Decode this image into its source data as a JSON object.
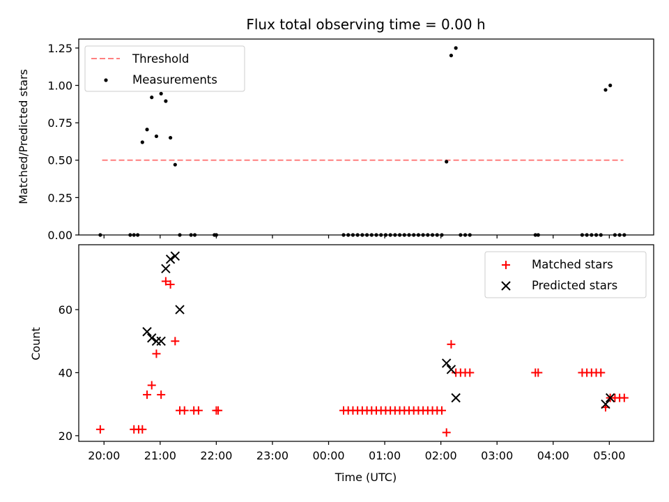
{
  "chart_data": [
    {
      "type": "scatter",
      "panel": "top",
      "title": "Flux total observing time = 0.00 h",
      "ylabel": "Matched/Predicted stars",
      "ylim": [
        0,
        1.31
      ],
      "yticks": [
        0.0,
        0.25,
        0.5,
        0.75,
        1.0,
        1.25
      ],
      "ytick_labels": [
        "0.00",
        "0.25",
        "0.50",
        "0.75",
        "1.00",
        "1.25"
      ],
      "xlim_hours": [
        19.55,
        29.79
      ],
      "legend_position": "upper-left",
      "colors": {
        "threshold": "#ff7f7f",
        "measurements": "#000000"
      },
      "series": [
        {
          "name": "Threshold",
          "kind": "dashed-line",
          "x": [
            "19:58",
            "05:15"
          ],
          "y": [
            0.5,
            0.5
          ]
        },
        {
          "name": "Measurements",
          "kind": "points",
          "points": [
            [
              "19:56",
              0.0
            ],
            [
              "20:28",
              0.0
            ],
            [
              "20:32",
              0.0
            ],
            [
              "20:36",
              0.0
            ],
            [
              "20:41",
              0.62
            ],
            [
              "20:46",
              0.705
            ],
            [
              "20:51",
              0.92
            ],
            [
              "20:56",
              0.66
            ],
            [
              "21:01",
              0.945
            ],
            [
              "21:06",
              0.895
            ],
            [
              "21:11",
              0.65
            ],
            [
              "21:16",
              0.47
            ],
            [
              "21:21",
              0.0
            ],
            [
              "21:33",
              0.0
            ],
            [
              "21:37",
              0.0
            ],
            [
              "21:58",
              0.0
            ],
            [
              "22:00",
              0.0
            ],
            [
              "00:16",
              0.0
            ],
            [
              "00:21",
              0.0
            ],
            [
              "00:26",
              0.0
            ],
            [
              "00:31",
              0.0
            ],
            [
              "00:36",
              0.0
            ],
            [
              "00:41",
              0.0
            ],
            [
              "00:46",
              0.0
            ],
            [
              "00:51",
              0.0
            ],
            [
              "00:56",
              0.0
            ],
            [
              "01:01",
              0.0
            ],
            [
              "01:06",
              0.0
            ],
            [
              "01:11",
              0.0
            ],
            [
              "01:16",
              0.0
            ],
            [
              "01:21",
              0.0
            ],
            [
              "01:26",
              0.0
            ],
            [
              "01:31",
              0.0
            ],
            [
              "01:36",
              0.0
            ],
            [
              "01:41",
              0.0
            ],
            [
              "01:46",
              0.0
            ],
            [
              "01:51",
              0.0
            ],
            [
              "01:56",
              0.0
            ],
            [
              "02:01",
              0.0
            ],
            [
              "02:06",
              0.49
            ],
            [
              "02:11",
              1.2
            ],
            [
              "02:16",
              1.25
            ],
            [
              "02:21",
              0.0
            ],
            [
              "02:26",
              0.0
            ],
            [
              "02:31",
              0.0
            ],
            [
              "03:41",
              0.0
            ],
            [
              "03:44",
              0.0
            ],
            [
              "04:31",
              0.0
            ],
            [
              "04:36",
              0.0
            ],
            [
              "04:41",
              0.0
            ],
            [
              "04:46",
              0.0
            ],
            [
              "04:51",
              0.0
            ],
            [
              "04:56",
              0.97
            ],
            [
              "05:01",
              1.0
            ],
            [
              "05:06",
              0.0
            ],
            [
              "05:11",
              0.0
            ],
            [
              "05:16",
              0.0
            ]
          ]
        }
      ]
    },
    {
      "type": "scatter",
      "panel": "bottom",
      "xlabel": "Time (UTC)",
      "ylabel": "Count",
      "ylim": [
        18.2,
        80.6
      ],
      "yticks": [
        20,
        40,
        60
      ],
      "ytick_labels": [
        "20",
        "40",
        "60"
      ],
      "xlim_hours": [
        19.55,
        29.79
      ],
      "xticks": [
        "20:00",
        "21:00",
        "22:00",
        "23:00",
        "00:00",
        "01:00",
        "02:00",
        "03:00",
        "04:00",
        "05:00"
      ],
      "legend_position": "upper-right",
      "colors": {
        "matched": "#ff0000",
        "predicted": "#000000"
      },
      "series": [
        {
          "name": "Matched stars",
          "marker": "plus",
          "points": [
            [
              "19:56",
              22
            ],
            [
              "20:32",
              22
            ],
            [
              "20:37",
              22
            ],
            [
              "20:41",
              22
            ],
            [
              "20:46",
              33
            ],
            [
              "20:51",
              36
            ],
            [
              "20:56",
              46
            ],
            [
              "21:01",
              33
            ],
            [
              "21:06",
              69
            ],
            [
              "21:11",
              68
            ],
            [
              "21:16",
              50
            ],
            [
              "21:21",
              28
            ],
            [
              "21:26",
              28
            ],
            [
              "21:36",
              28
            ],
            [
              "21:41",
              28
            ],
            [
              "22:00",
              28
            ],
            [
              "22:02",
              28
            ],
            [
              "00:16",
              28
            ],
            [
              "00:21",
              28
            ],
            [
              "00:26",
              28
            ],
            [
              "00:31",
              28
            ],
            [
              "00:36",
              28
            ],
            [
              "00:41",
              28
            ],
            [
              "00:46",
              28
            ],
            [
              "00:51",
              28
            ],
            [
              "00:56",
              28
            ],
            [
              "01:01",
              28
            ],
            [
              "01:06",
              28
            ],
            [
              "01:11",
              28
            ],
            [
              "01:16",
              28
            ],
            [
              "01:21",
              28
            ],
            [
              "01:26",
              28
            ],
            [
              "01:31",
              28
            ],
            [
              "01:36",
              28
            ],
            [
              "01:41",
              28
            ],
            [
              "01:46",
              28
            ],
            [
              "01:51",
              28
            ],
            [
              "01:56",
              28
            ],
            [
              "02:01",
              28
            ],
            [
              "02:06",
              21
            ],
            [
              "02:11",
              49
            ],
            [
              "02:16",
              40
            ],
            [
              "02:21",
              40
            ],
            [
              "02:26",
              40
            ],
            [
              "02:31",
              40
            ],
            [
              "03:41",
              40
            ],
            [
              "03:44",
              40
            ],
            [
              "04:31",
              40
            ],
            [
              "04:36",
              40
            ],
            [
              "04:41",
              40
            ],
            [
              "04:46",
              40
            ],
            [
              "04:51",
              40
            ],
            [
              "04:56",
              29
            ],
            [
              "05:01",
              32
            ],
            [
              "05:06",
              32
            ],
            [
              "05:11",
              32
            ],
            [
              "05:16",
              32
            ]
          ]
        },
        {
          "name": "Predicted stars",
          "marker": "x",
          "points": [
            [
              "20:46",
              53
            ],
            [
              "20:51",
              51
            ],
            [
              "20:56",
              50
            ],
            [
              "21:01",
              50
            ],
            [
              "21:06",
              73
            ],
            [
              "21:11",
              76
            ],
            [
              "21:16",
              77
            ],
            [
              "21:21",
              60
            ],
            [
              "02:06",
              43
            ],
            [
              "02:11",
              41
            ],
            [
              "02:16",
              32
            ],
            [
              "04:56",
              30
            ],
            [
              "05:01",
              32
            ]
          ]
        }
      ]
    }
  ]
}
